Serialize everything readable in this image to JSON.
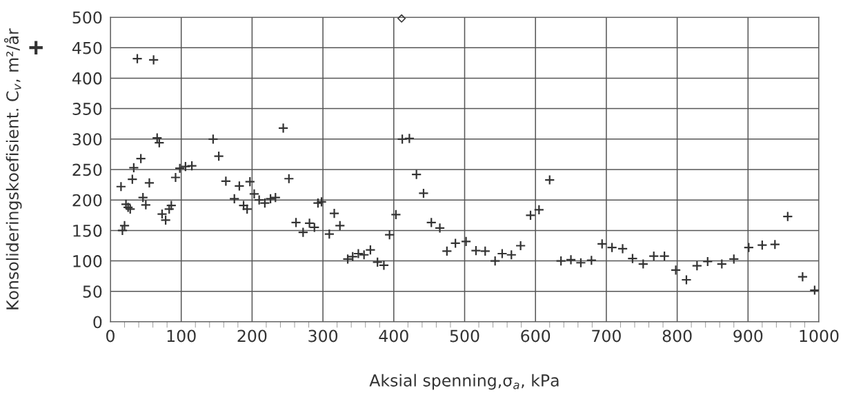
{
  "chart_data": {
    "type": "scatter",
    "xlabel": "Aksial spenning,σ$_{a}$, kPa",
    "ylabel": "Konsolideringskoefisient. C$_{v}$, m²/år",
    "xlim": [
      0,
      1000
    ],
    "xticks": [
      0,
      100,
      200,
      300,
      400,
      500,
      600,
      700,
      800,
      900,
      1000
    ],
    "ylim": [
      0,
      500
    ],
    "yticks": [
      0,
      50,
      100,
      150,
      200,
      250,
      300,
      350,
      400,
      450,
      500
    ],
    "grid": true,
    "series": [
      {
        "color": "#333333",
        "marker": "cross",
        "x": [
          15,
          17,
          20,
          22,
          25,
          28,
          31,
          33,
          38,
          43,
          46,
          50,
          55,
          61,
          66,
          69,
          73,
          78,
          83,
          86,
          92,
          98,
          106,
          115,
          145,
          153,
          163,
          175,
          182,
          188,
          193,
          197,
          203,
          210,
          218,
          226,
          233,
          244,
          252,
          262,
          272,
          281,
          288,
          293,
          298,
          309,
          316,
          324,
          335,
          342,
          350,
          358,
          367,
          377,
          386,
          394,
          403,
          412,
          422,
          432,
          442,
          453,
          465,
          475,
          487,
          502,
          516,
          529,
          543,
          553,
          566,
          579,
          593,
          605,
          620,
          636,
          650,
          664,
          679,
          694,
          708,
          723,
          737,
          752,
          767,
          782,
          798,
          813,
          828,
          843,
          863,
          880,
          901,
          920,
          938,
          956,
          977,
          994
        ],
        "values": [
          222,
          150,
          158,
          193,
          188,
          185,
          234,
          253,
          432,
          268,
          204,
          192,
          228,
          430,
          302,
          294,
          177,
          167,
          185,
          191,
          237,
          252,
          255,
          256,
          300,
          272,
          231,
          202,
          223,
          191,
          185,
          230,
          210,
          200,
          195,
          202,
          204,
          318,
          235,
          163,
          147,
          162,
          155,
          195,
          197,
          144,
          178,
          158,
          103,
          107,
          112,
          110,
          118,
          98,
          93,
          143,
          176,
          300,
          301,
          242,
          211,
          163,
          154,
          116,
          129,
          132,
          117,
          116,
          100,
          112,
          110,
          125,
          175,
          184,
          233,
          100,
          102,
          97,
          101,
          128,
          122,
          120,
          104,
          95,
          108,
          108,
          85,
          69,
          92,
          99,
          95,
          103,
          122,
          126,
          127,
          173,
          74,
          52
        ]
      },
      {
        "color": "#333333",
        "marker": "diamond",
        "x": [
          411
        ],
        "values": [
          498
        ]
      }
    ]
  }
}
